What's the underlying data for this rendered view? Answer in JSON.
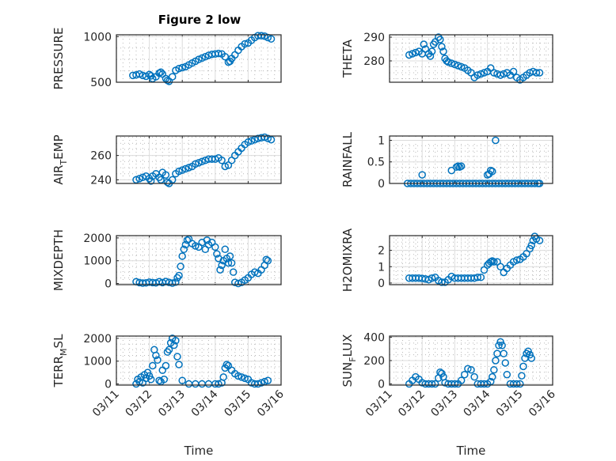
{
  "figure": {
    "title": "Figure 2 low",
    "marker_color": "#0072BD",
    "marker": "circle"
  },
  "chart_data": [
    {
      "type": "scatter",
      "title": "Figure 2 low",
      "xlabel": "",
      "ylabel": "PRESSURE",
      "xlim": [
        0,
        5
      ],
      "ylim": [
        500,
        1020
      ],
      "yticks": [
        500,
        1000
      ],
      "ytick_labels": [
        "500",
        "1000"
      ],
      "xtick_labels": [
        "03/11",
        "03/12",
        "03/13",
        "03/14",
        "03/15",
        "03/16"
      ],
      "show_xtick_labels": false,
      "grid": true,
      "minor_grid": true,
      "x": [
        0.5,
        0.6,
        0.7,
        0.8,
        0.9,
        1.0,
        1.05,
        1.1,
        1.2,
        1.3,
        1.35,
        1.4,
        1.5,
        1.55,
        1.6,
        1.7,
        1.8,
        1.9,
        2.0,
        2.1,
        2.2,
        2.3,
        2.4,
        2.5,
        2.6,
        2.7,
        2.8,
        2.9,
        3.0,
        3.1,
        3.2,
        3.3,
        3.4,
        3.45,
        3.5,
        3.6,
        3.7,
        3.8,
        3.9,
        4.0,
        4.1,
        4.2,
        4.3,
        4.4,
        4.5,
        4.6,
        4.7
      ],
      "y": [
        575,
        580,
        590,
        575,
        565,
        585,
        570,
        540,
        560,
        600,
        610,
        590,
        540,
        520,
        510,
        560,
        630,
        650,
        660,
        670,
        690,
        710,
        730,
        750,
        765,
        780,
        795,
        805,
        810,
        815,
        810,
        780,
        720,
        730,
        760,
        800,
        850,
        890,
        920,
        930,
        960,
        990,
        1010,
        1010,
        1005,
        990,
        975
      ]
    },
    {
      "type": "scatter",
      "xlabel": "",
      "ylabel": "THETA",
      "xlim": [
        0,
        5
      ],
      "ylim": [
        271,
        291
      ],
      "yticks": [
        280,
        290
      ],
      "ytick_labels": [
        "280",
        "290"
      ],
      "xtick_labels": [
        "03/11",
        "03/12",
        "03/13",
        "03/14",
        "03/15",
        "03/16"
      ],
      "show_xtick_labels": false,
      "grid": true,
      "minor_grid": true,
      "x": [
        0.6,
        0.7,
        0.8,
        0.9,
        1.0,
        1.05,
        1.1,
        1.2,
        1.25,
        1.3,
        1.35,
        1.4,
        1.5,
        1.55,
        1.6,
        1.65,
        1.7,
        1.75,
        1.8,
        1.9,
        2.0,
        2.1,
        2.2,
        2.3,
        2.4,
        2.5,
        2.6,
        2.7,
        2.8,
        2.9,
        3.0,
        3.1,
        3.2,
        3.3,
        3.4,
        3.5,
        3.6,
        3.7,
        3.8,
        3.9,
        4.0,
        4.1,
        4.2,
        4.3,
        4.4,
        4.5,
        4.6
      ],
      "y": [
        282.5,
        283,
        283.5,
        284,
        283,
        287,
        285,
        283,
        282,
        284,
        287,
        288,
        290,
        289,
        286,
        284,
        281,
        280,
        279.5,
        279,
        278.5,
        278,
        277.5,
        277,
        276,
        275,
        273,
        274,
        274.5,
        275,
        275.5,
        277,
        275,
        274.5,
        274,
        274.5,
        275,
        274,
        275.5,
        273,
        272,
        273,
        274,
        275,
        275.5,
        275,
        275
      ]
    },
    {
      "type": "scatter",
      "xlabel": "",
      "ylabel": "AIR_TEMP",
      "ylabel_display": {
        "base": "AIR",
        "sub": "T",
        "rest": "EMP"
      },
      "xlim": [
        0,
        5
      ],
      "ylim": [
        237,
        276
      ],
      "yticks": [
        240,
        260
      ],
      "ytick_labels": [
        "240",
        "260"
      ],
      "xtick_labels": [
        "03/11",
        "03/12",
        "03/13",
        "03/14",
        "03/15",
        "03/16"
      ],
      "show_xtick_labels": false,
      "grid": true,
      "minor_grid": true,
      "x": [
        0.6,
        0.7,
        0.8,
        0.9,
        1.0,
        1.05,
        1.1,
        1.2,
        1.3,
        1.35,
        1.4,
        1.5,
        1.55,
        1.6,
        1.7,
        1.8,
        1.9,
        2.0,
        2.1,
        2.2,
        2.3,
        2.4,
        2.5,
        2.6,
        2.7,
        2.8,
        2.9,
        3.0,
        3.1,
        3.2,
        3.3,
        3.4,
        3.5,
        3.6,
        3.7,
        3.8,
        3.9,
        4.0,
        4.1,
        4.2,
        4.3,
        4.4,
        4.5,
        4.6,
        4.7
      ],
      "y": [
        240,
        241,
        242,
        243,
        241,
        239,
        243,
        245,
        242,
        240,
        246,
        244,
        238,
        237,
        240,
        245,
        247,
        248,
        249,
        250,
        251,
        253,
        254,
        255,
        256,
        257,
        257,
        257,
        258,
        256,
        251,
        252,
        256,
        260,
        263,
        266,
        269,
        271,
        272,
        273,
        274,
        274.5,
        275,
        274,
        273
      ]
    },
    {
      "type": "scatter",
      "xlabel": "",
      "ylabel": "RAINFALL",
      "xlim": [
        0,
        5
      ],
      "ylim": [
        0,
        1.1
      ],
      "yticks": [
        0,
        0.5,
        1
      ],
      "ytick_labels": [
        "0",
        "0.5",
        "1"
      ],
      "xtick_labels": [
        "03/11",
        "03/12",
        "03/13",
        "03/14",
        "03/15",
        "03/16"
      ],
      "show_xtick_labels": false,
      "grid": true,
      "minor_grid": true,
      "x": [
        0.55,
        0.65,
        0.75,
        0.85,
        0.95,
        1.05,
        1.15,
        1.25,
        1.35,
        1.45,
        1.55,
        1.65,
        1.75,
        1.85,
        1.95,
        2.05,
        2.15,
        2.25,
        2.35,
        2.45,
        2.55,
        2.65,
        2.75,
        2.85,
        2.95,
        3.05,
        3.15,
        3.25,
        3.35,
        3.45,
        3.55,
        3.65,
        3.75,
        3.85,
        3.95,
        4.05,
        4.15,
        4.25,
        4.35,
        4.45,
        4.55,
        4.6,
        1.0,
        1.9,
        2.05,
        2.1,
        2.15,
        2.2,
        3.0,
        3.05,
        3.1,
        3.15,
        3.25
      ],
      "y": [
        0,
        0,
        0,
        0,
        0,
        0,
        0,
        0,
        0,
        0,
        0,
        0,
        0,
        0,
        0,
        0,
        0,
        0,
        0,
        0,
        0,
        0,
        0,
        0,
        0,
        0,
        0,
        0,
        0,
        0,
        0,
        0,
        0,
        0,
        0,
        0,
        0,
        0,
        0,
        0,
        0,
        0,
        0.2,
        0.3,
        0.38,
        0.4,
        0.38,
        0.4,
        0.2,
        0.22,
        0.3,
        0.28,
        1.0
      ]
    },
    {
      "type": "scatter",
      "xlabel": "",
      "ylabel": "MIXDEPTH",
      "xlim": [
        0,
        5
      ],
      "ylim": [
        -50,
        2100
      ],
      "yticks": [
        0,
        1000,
        2000
      ],
      "ytick_labels": [
        "0",
        "1000",
        "2000"
      ],
      "xtick_labels": [
        "03/11",
        "03/12",
        "03/13",
        "03/14",
        "03/15",
        "03/16"
      ],
      "show_xtick_labels": false,
      "grid": true,
      "minor_grid": true,
      "x": [
        0.6,
        0.7,
        0.8,
        0.9,
        1.0,
        1.1,
        1.2,
        1.3,
        1.4,
        1.5,
        1.6,
        1.7,
        1.8,
        1.85,
        1.9,
        1.95,
        2.0,
        2.05,
        2.1,
        2.15,
        2.2,
        2.3,
        2.4,
        2.5,
        2.6,
        2.7,
        2.75,
        2.8,
        2.9,
        3.0,
        3.05,
        3.1,
        3.15,
        3.2,
        3.25,
        3.3,
        3.35,
        3.4,
        3.45,
        3.5,
        3.55,
        3.6,
        3.7,
        3.8,
        3.9,
        4.0,
        4.1,
        4.2,
        4.3,
        4.4,
        4.5,
        4.55,
        4.6
      ],
      "y": [
        80,
        40,
        20,
        30,
        60,
        40,
        30,
        80,
        40,
        90,
        50,
        20,
        60,
        250,
        350,
        750,
        1200,
        1500,
        1700,
        1900,
        1950,
        1750,
        1650,
        1600,
        1800,
        1500,
        1900,
        1700,
        1800,
        1600,
        1300,
        1100,
        600,
        800,
        1000,
        1500,
        1100,
        900,
        1200,
        900,
        500,
        50,
        0,
        50,
        150,
        250,
        400,
        500,
        450,
        600,
        800,
        1050,
        1000
      ]
    },
    {
      "type": "scatter",
      "xlabel": "",
      "ylabel": "H2OMIXRA",
      "xlim": [
        0,
        5
      ],
      "ylim": [
        -0.1,
        2.9
      ],
      "yticks": [
        0,
        1,
        2
      ],
      "ytick_labels": [
        "0",
        "1",
        "2"
      ],
      "xtick_labels": [
        "03/11",
        "03/12",
        "03/13",
        "03/14",
        "03/15",
        "03/16"
      ],
      "show_xtick_labels": false,
      "grid": true,
      "minor_grid": true,
      "x": [
        0.6,
        0.7,
        0.8,
        0.9,
        1.0,
        1.1,
        1.2,
        1.3,
        1.4,
        1.5,
        1.6,
        1.7,
        1.8,
        1.9,
        2.0,
        2.1,
        2.2,
        2.3,
        2.4,
        2.5,
        2.6,
        2.7,
        2.8,
        2.9,
        3.0,
        3.05,
        3.1,
        3.15,
        3.2,
        3.3,
        3.4,
        3.5,
        3.6,
        3.7,
        3.8,
        3.9,
        4.0,
        4.1,
        4.2,
        4.3,
        4.35,
        4.4,
        4.45,
        4.5,
        4.6
      ],
      "y": [
        0.3,
        0.3,
        0.3,
        0.3,
        0.28,
        0.25,
        0.2,
        0.3,
        0.35,
        0.15,
        0.05,
        0.05,
        0.2,
        0.4,
        0.3,
        0.3,
        0.3,
        0.3,
        0.3,
        0.3,
        0.3,
        0.35,
        0.35,
        0.8,
        1.1,
        1.2,
        1.3,
        1.35,
        1.3,
        1.3,
        1.0,
        0.65,
        0.9,
        1.1,
        1.3,
        1.4,
        1.45,
        1.6,
        1.8,
        2.1,
        2.3,
        2.6,
        2.85,
        2.7,
        2.6
      ]
    },
    {
      "type": "scatter",
      "xlabel": "Time",
      "ylabel": "TERR_MSL",
      "ylabel_display": {
        "base": "TERR",
        "sub": "M",
        "rest": "SL"
      },
      "xlim": [
        0,
        5
      ],
      "ylim": [
        -50,
        2100
      ],
      "yticks": [
        0,
        1000,
        2000
      ],
      "ytick_labels": [
        "0",
        "1000",
        "2000"
      ],
      "xtick_labels": [
        "03/11",
        "03/12",
        "03/13",
        "03/14",
        "03/15",
        "03/16"
      ],
      "show_xtick_labels": true,
      "grid": true,
      "minor_grid": true,
      "x": [
        0.6,
        0.65,
        0.7,
        0.75,
        0.8,
        0.85,
        0.9,
        0.95,
        1.0,
        1.05,
        1.1,
        1.15,
        1.2,
        1.25,
        1.3,
        1.35,
        1.4,
        1.45,
        1.5,
        1.55,
        1.6,
        1.65,
        1.7,
        1.75,
        1.8,
        1.85,
        1.9,
        2.0,
        2.2,
        2.4,
        2.6,
        2.8,
        3.0,
        3.1,
        3.2,
        3.25,
        3.3,
        3.35,
        3.4,
        3.5,
        3.6,
        3.7,
        3.8,
        3.9,
        4.0,
        4.1,
        4.2,
        4.3,
        4.4,
        4.5,
        4.6
      ],
      "y": [
        0,
        200,
        100,
        300,
        50,
        400,
        250,
        500,
        350,
        200,
        800,
        1500,
        1250,
        1050,
        150,
        100,
        600,
        200,
        800,
        1400,
        1500,
        1800,
        2000,
        1700,
        1900,
        1200,
        850,
        150,
        0,
        0,
        0,
        0,
        0,
        0,
        50,
        300,
        700,
        850,
        800,
        600,
        450,
        350,
        300,
        250,
        200,
        50,
        0,
        0,
        50,
        100,
        150
      ]
    },
    {
      "type": "scatter",
      "xlabel": "Time",
      "ylabel": "SUN_FLUX",
      "ylabel_display": {
        "base": "SUN",
        "sub": "F",
        "rest": "LUX"
      },
      "xlim": [
        0,
        5
      ],
      "ylim": [
        -10,
        410
      ],
      "yticks": [
        0,
        200,
        400
      ],
      "ytick_labels": [
        "0",
        "200",
        "400"
      ],
      "xtick_labels": [
        "03/11",
        "03/12",
        "03/13",
        "03/14",
        "03/15",
        "03/16"
      ],
      "show_xtick_labels": true,
      "grid": true,
      "minor_grid": true,
      "x": [
        0.6,
        0.7,
        0.8,
        0.9,
        1.0,
        1.1,
        1.2,
        1.3,
        1.4,
        1.5,
        1.55,
        1.6,
        1.65,
        1.7,
        1.8,
        1.9,
        2.0,
        2.1,
        2.2,
        2.3,
        2.4,
        2.5,
        2.6,
        2.7,
        2.8,
        2.9,
        3.0,
        3.1,
        3.15,
        3.2,
        3.25,
        3.3,
        3.35,
        3.4,
        3.45,
        3.5,
        3.55,
        3.6,
        3.7,
        3.8,
        3.9,
        4.0,
        4.05,
        4.1,
        4.15,
        4.2,
        4.25,
        4.3,
        4.35
      ],
      "y": [
        0,
        30,
        60,
        40,
        10,
        0,
        0,
        0,
        0,
        50,
        100,
        90,
        60,
        10,
        0,
        0,
        0,
        0,
        30,
        80,
        130,
        120,
        60,
        0,
        0,
        0,
        0,
        20,
        60,
        120,
        200,
        260,
        330,
        360,
        330,
        260,
        180,
        80,
        0,
        0,
        0,
        0,
        70,
        150,
        220,
        260,
        280,
        250,
        220
      ]
    }
  ]
}
